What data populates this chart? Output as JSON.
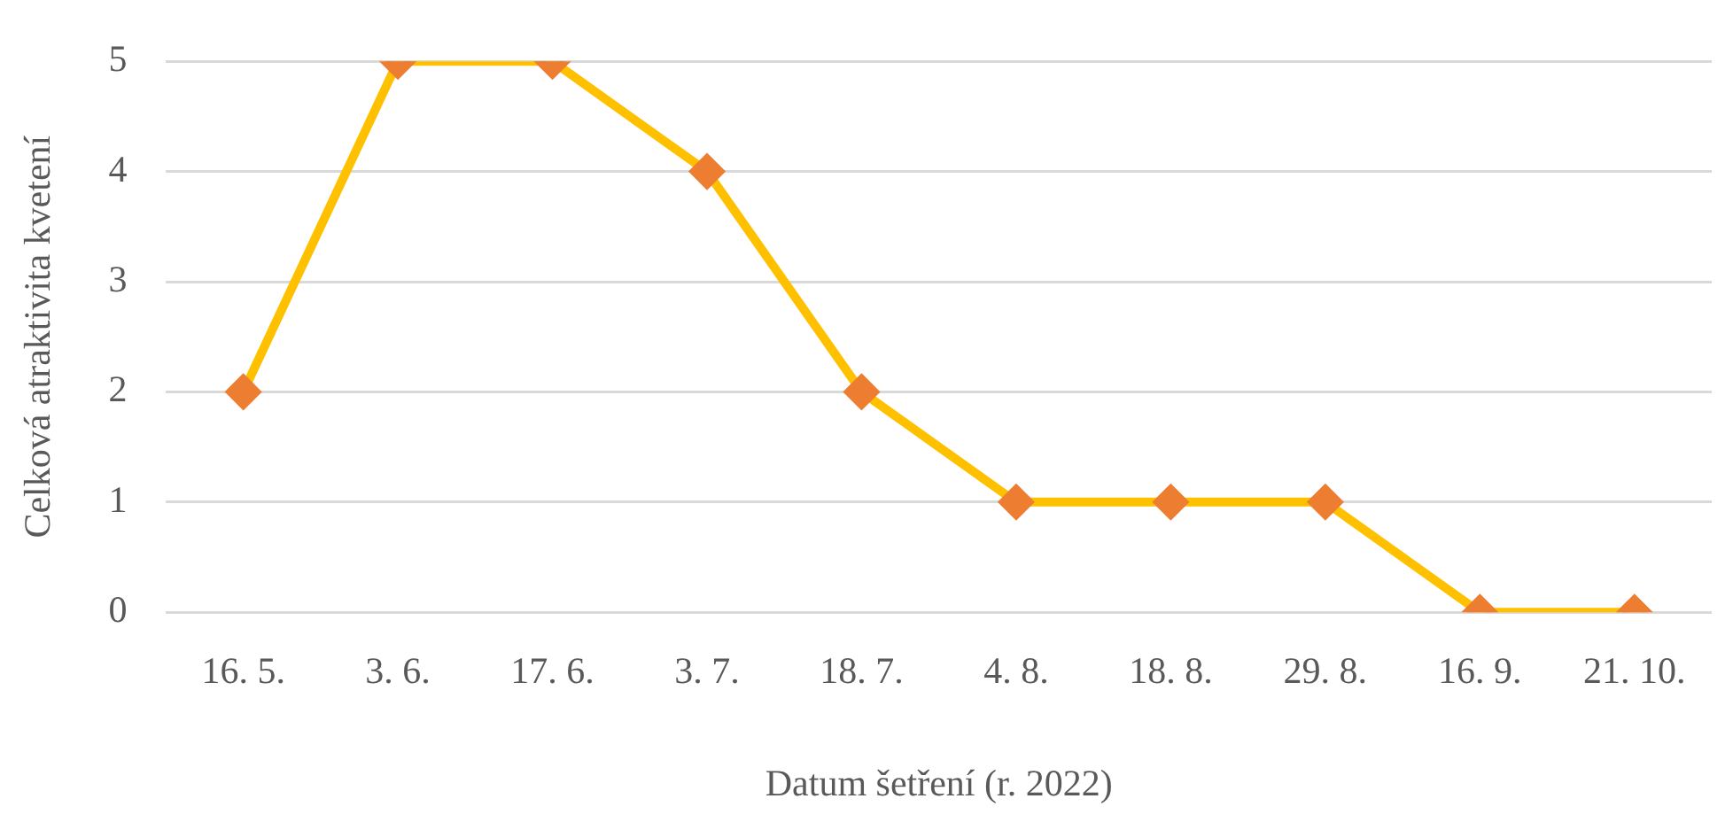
{
  "chart_data": {
    "type": "line",
    "xlabel": "Datum šetření (r. 2022)",
    "ylabel": "Celková atraktivita kvetení",
    "categories": [
      "16. 5.",
      "3. 6.",
      "17. 6.",
      "3. 7.",
      "18. 7.",
      "4. 8.",
      "18. 8.",
      "29. 8.",
      "16. 9.",
      "21. 10."
    ],
    "series": [
      {
        "color": "#ffc000",
        "colors": [
          "#ed7d31",
          "#ed7d31",
          "#ed7d31",
          "#ed7d31",
          "#ed7d31",
          "#ed7d31",
          "#ed7d31",
          "#ed7d31",
          "#ed7d31",
          "#ed7d31"
        ],
        "values": [
          2,
          5,
          5,
          4,
          2,
          1,
          1,
          1,
          0,
          0
        ]
      }
    ],
    "ylim": [
      0,
      5
    ],
    "yticks": [
      0,
      1,
      2,
      3,
      4,
      5
    ],
    "grid": "y",
    "legend": false,
    "marker": "diamond",
    "line_style": "solid"
  }
}
